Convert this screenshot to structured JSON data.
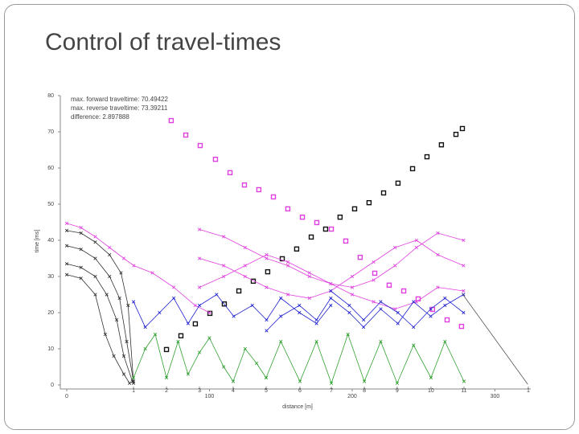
{
  "slide": {
    "title": "Control of travel-times"
  },
  "chart_data": {
    "type": "line",
    "annotations": [
      "max. forward traveltime: 70.49422",
      "max. reverse traveltime: 73.39211",
      "difference: 2.897888"
    ],
    "x_label": "distance [m]",
    "y_label": "time [ms]",
    "xlim": [
      -4.5,
      325.1
    ],
    "ylim": [
      0,
      80
    ],
    "xticks": [
      0,
      100,
      200,
      300
    ],
    "yticks": [
      0,
      10,
      20,
      30,
      40,
      50,
      60,
      70,
      80
    ],
    "x2ticks": [
      {
        "value": 46.8,
        "label": "1"
      },
      {
        "value": 69.9,
        "label": "2"
      },
      {
        "value": 93,
        "label": "3"
      },
      {
        "value": 116.6,
        "label": "4"
      },
      {
        "value": 139.7,
        "label": "5"
      },
      {
        "value": 163.4,
        "label": "6"
      },
      {
        "value": 185.4,
        "label": "7"
      },
      {
        "value": 208.5,
        "label": "8"
      },
      {
        "value": 231.5,
        "label": "9"
      },
      {
        "value": 255.2,
        "label": "10"
      },
      {
        "value": 278.3,
        "label": "11"
      },
      {
        "value": 323.4,
        "label": "1"
      }
    ],
    "grid": false,
    "series": [
      {
        "color": "#e040e0",
        "marker": "square",
        "connect": false,
        "x": [
          73.2,
          83.4,
          93.5,
          104.2,
          114.4,
          124.5,
          134.6,
          144.8,
          154.9,
          165.1,
          175.2,
          185.4,
          195.5,
          205.6,
          215.8,
          225.9,
          236.1,
          246.2,
          256.3,
          266.5,
          276.6
        ],
        "values": [
          73.1,
          69.1,
          66.2,
          62.4,
          58.7,
          55.3,
          54.0,
          52.0,
          48.7,
          46.4,
          44.9,
          43.1,
          39.8,
          35.3,
          30.9,
          27.6,
          26.0,
          23.8,
          20.9,
          18.0,
          16.2
        ]
      },
      {
        "color": "#111111",
        "marker": "square",
        "connect": false,
        "x": [
          69.9,
          80.0,
          90.1,
          100.3,
          110.4,
          120.6,
          130.7,
          140.8,
          151.0,
          161.1,
          171.3,
          181.4,
          191.5,
          201.7,
          211.8,
          222.0,
          232.1,
          242.3,
          252.4,
          262.5,
          272.7,
          277.2
        ],
        "values": [
          9.8,
          13.6,
          16.9,
          19.8,
          22.4,
          26.0,
          28.7,
          31.3,
          34.9,
          37.6,
          40.9,
          43.1,
          46.4,
          48.7,
          50.4,
          53.1,
          55.8,
          59.8,
          63.1,
          66.4,
          69.3,
          70.9
        ]
      },
      {
        "color": "#333333",
        "marker": "x",
        "connect": true,
        "x": [
          0,
          10,
          20,
          30,
          38,
          43,
          46.8
        ],
        "values": [
          42.7,
          42,
          39.5,
          36,
          31,
          22,
          0.5
        ]
      },
      {
        "color": "#333333",
        "marker": "x",
        "connect": true,
        "x": [
          0,
          10,
          20,
          30,
          37,
          42,
          46.8
        ],
        "values": [
          38.5,
          37.5,
          35,
          30,
          24,
          12,
          1
        ]
      },
      {
        "color": "#333333",
        "marker": "x",
        "connect": true,
        "x": [
          0,
          10,
          20,
          28,
          35,
          40,
          46
        ],
        "values": [
          33.5,
          32.5,
          30,
          25,
          18,
          8,
          1
        ]
      },
      {
        "color": "#333333",
        "marker": "x",
        "connect": true,
        "x": [
          0,
          10,
          20,
          27,
          33,
          40,
          44
        ],
        "values": [
          30.5,
          29.5,
          25,
          14,
          8,
          3,
          0.5
        ]
      },
      {
        "color": "#e040e0",
        "marker": "x",
        "connect": true,
        "x": [
          0,
          10,
          20,
          30,
          40,
          47,
          60,
          75,
          90,
          100
        ],
        "values": [
          44.7,
          43.5,
          41,
          38,
          35,
          33,
          31,
          27,
          22,
          20
        ]
      },
      {
        "color": "#e040e0",
        "marker": "x",
        "connect": true,
        "x": [
          93,
          110,
          125,
          140,
          155,
          170,
          185,
          200,
          215,
          230,
          245,
          260,
          278
        ],
        "values": [
          43,
          41,
          38,
          35,
          33,
          30,
          28,
          27,
          29,
          33,
          38,
          42,
          40
        ]
      },
      {
        "color": "#e040e0",
        "marker": "x",
        "connect": true,
        "x": [
          93,
          110,
          125,
          140,
          155,
          170,
          185,
          200,
          215,
          230,
          245,
          260,
          278
        ],
        "values": [
          35,
          33,
          30,
          27,
          25,
          24,
          26,
          30,
          34,
          38,
          40,
          36,
          33
        ]
      },
      {
        "color": "#e040e0",
        "marker": "x",
        "connect": true,
        "x": [
          93,
          110,
          125,
          140,
          155,
          170,
          185,
          200,
          215,
          230,
          245,
          260,
          278
        ],
        "values": [
          27,
          30,
          33,
          36,
          34,
          31,
          28,
          25,
          23,
          21,
          23,
          27,
          26
        ]
      },
      {
        "color": "#2020d0",
        "marker": "x",
        "connect": true,
        "x": [
          46.8,
          55,
          65,
          75,
          85,
          93,
          105,
          117,
          130,
          140,
          150,
          163,
          175,
          185
        ],
        "values": [
          23,
          16,
          20,
          24,
          17,
          22,
          25,
          19,
          22,
          18,
          24,
          20,
          17,
          22
        ]
      },
      {
        "color": "#2020d0",
        "marker": "x",
        "connect": true,
        "x": [
          140,
          150,
          163,
          175,
          185,
          198,
          208,
          220,
          232,
          243,
          255,
          265,
          278
        ],
        "values": [
          15,
          19,
          22,
          18,
          24,
          20,
          16,
          21,
          17,
          23,
          19,
          22,
          25
        ]
      },
      {
        "color": "#2020d0",
        "marker": "x",
        "connect": true,
        "x": [
          185,
          198,
          208,
          220,
          232,
          243,
          255,
          265,
          278
        ],
        "values": [
          26,
          22,
          18,
          23,
          20,
          16,
          21,
          24,
          20
        ]
      },
      {
        "color": "#30a030",
        "marker": "x",
        "connect": true,
        "x": [
          46.8,
          55,
          62,
          69.9,
          78,
          85,
          93,
          100,
          110,
          116.6,
          125,
          133,
          139.7
        ],
        "values": [
          2,
          10,
          14,
          2,
          12,
          3,
          9,
          13,
          5,
          1,
          10,
          6,
          2
        ]
      },
      {
        "color": "#30a030",
        "marker": "x",
        "connect": true,
        "x": [
          139.7,
          150,
          163.4,
          175,
          185.4,
          197,
          208.5,
          220,
          231.5,
          243,
          255.2,
          265,
          278.3
        ],
        "values": [
          2,
          12,
          1,
          12,
          0.5,
          14,
          1,
          12,
          0.5,
          11,
          2,
          12,
          1
        ]
      },
      {
        "color": "#555555",
        "marker": "none",
        "connect": true,
        "x": [
          277,
          323
        ],
        "values": [
          25.3,
          0.2
        ]
      }
    ]
  }
}
